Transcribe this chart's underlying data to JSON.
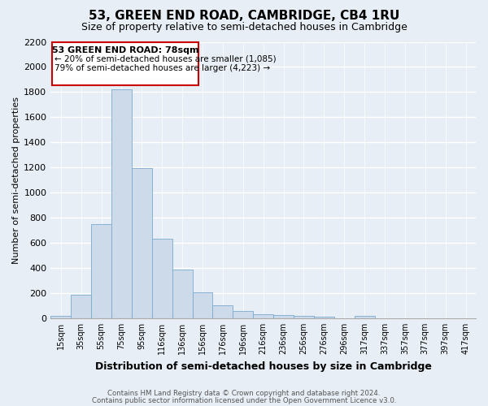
{
  "title": "53, GREEN END ROAD, CAMBRIDGE, CB4 1RU",
  "subtitle": "Size of property relative to semi-detached houses in Cambridge",
  "xlabel": "Distribution of semi-detached houses by size in Cambridge",
  "ylabel": "Number of semi-detached properties",
  "bar_color": "#cddaea",
  "bar_edge_color": "#7aaacf",
  "categories": [
    "15sqm",
    "35sqm",
    "55sqm",
    "75sqm",
    "95sqm",
    "116sqm",
    "136sqm",
    "156sqm",
    "176sqm",
    "196sqm",
    "216sqm",
    "236sqm",
    "256sqm",
    "276sqm",
    "296sqm",
    "317sqm",
    "337sqm",
    "357sqm",
    "377sqm",
    "397sqm",
    "417sqm"
  ],
  "values": [
    20,
    190,
    750,
    1820,
    1195,
    630,
    390,
    205,
    105,
    60,
    30,
    25,
    20,
    15,
    0,
    20,
    0,
    0,
    0,
    0,
    0
  ],
  "ylim": [
    0,
    2200
  ],
  "yticks": [
    0,
    200,
    400,
    600,
    800,
    1000,
    1200,
    1400,
    1600,
    1800,
    2000,
    2200
  ],
  "annotation_title": "53 GREEN END ROAD: 78sqm",
  "annotation_line1": "← 20% of semi-detached houses are smaller (1,085)",
  "annotation_line2": "79% of semi-detached houses are larger (4,223) →",
  "footer1": "Contains HM Land Registry data © Crown copyright and database right 2024.",
  "footer2": "Contains public sector information licensed under the Open Government Licence v3.0.",
  "background_color": "#e8eef5",
  "grid_color": "#ffffff",
  "title_fontsize": 11,
  "subtitle_fontsize": 9
}
